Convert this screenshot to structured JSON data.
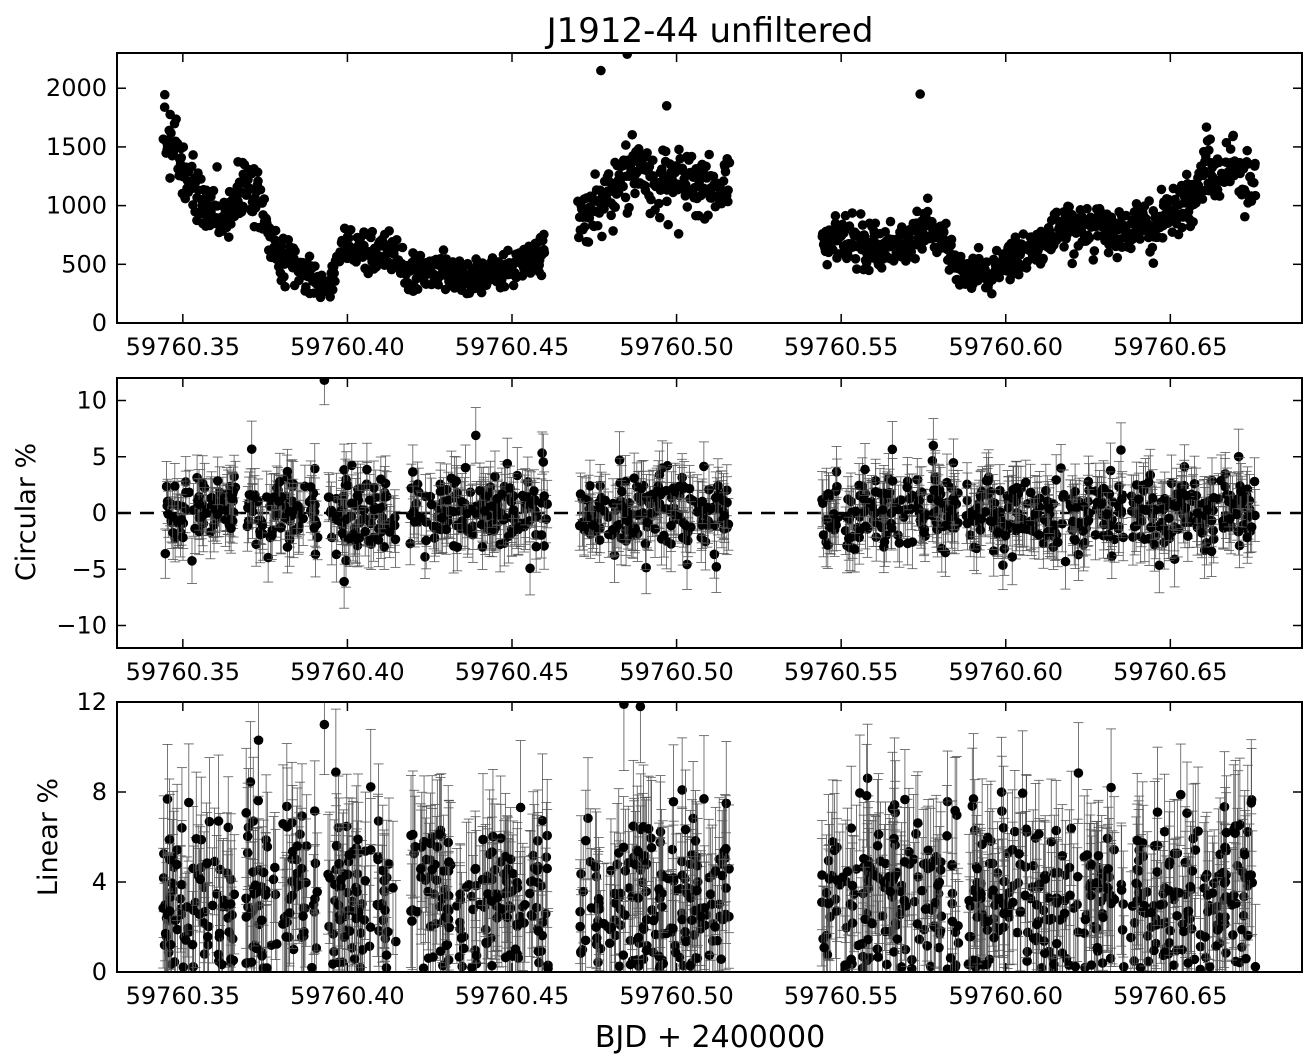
{
  "chart_data": [
    {
      "type": "scatter",
      "title": "J1912-44 unfiltered",
      "ylabel": "",
      "xlabel": "",
      "xlim": [
        59760.33,
        59760.69
      ],
      "ylim": [
        0,
        2300
      ],
      "xticks": [
        59760.35,
        59760.4,
        59760.45,
        59760.5,
        59760.55,
        59760.6,
        59760.65
      ],
      "xtick_labels": [
        "59760.35",
        "59760.40",
        "59760.45",
        "59760.50",
        "59760.55",
        "59760.60",
        "59760.65"
      ],
      "yticks": [
        0,
        500,
        1000,
        1500,
        2000
      ],
      "ytick_labels": [
        "0",
        "500",
        "1000",
        "1500",
        "2000"
      ],
      "error_bars": false,
      "segments": [
        {
          "x": [
            59760.344,
            59760.349,
            59760.353,
            59760.358,
            59760.362,
            59760.366,
            59760.369,
            59760.373,
            59760.376,
            59760.379,
            59760.383,
            59760.386,
            59760.39,
            59760.393,
            59760.398,
            59760.403,
            59760.408,
            59760.413,
            59760.418,
            59760.423,
            59760.429,
            59760.435,
            59760.441,
            59760.447,
            59760.452,
            59760.456,
            59760.46
          ],
          "y": [
            1620,
            1420,
            1100,
            980,
            860,
            1100,
            1250,
            1000,
            720,
            570,
            520,
            470,
            380,
            300,
            580,
            650,
            560,
            610,
            450,
            470,
            430,
            430,
            400,
            420,
            480,
            550,
            600
          ]
        },
        {
          "x": [
            59760.47,
            59760.474,
            59760.479,
            59760.484,
            59760.488,
            59760.493,
            59760.498,
            59760.503,
            59760.508,
            59760.513,
            59760.516
          ],
          "y": [
            880,
            980,
            1040,
            1240,
            1350,
            1200,
            1230,
            1150,
            1170,
            1100,
            1180
          ]
        },
        {
          "x": [
            59760.544,
            59760.549,
            59760.554,
            59760.559,
            59760.564,
            59760.569,
            59760.573,
            59760.577,
            59760.581,
            59760.585,
            59760.59,
            59760.595,
            59760.6,
            59760.605,
            59760.61,
            59760.616,
            59760.622,
            59760.628,
            59760.634,
            59760.64,
            59760.646,
            59760.652,
            59760.657,
            59760.661,
            59760.665,
            59760.669,
            59760.673,
            59760.676
          ],
          "y": [
            700,
            700,
            680,
            650,
            650,
            700,
            760,
            820,
            720,
            500,
            450,
            400,
            540,
            620,
            660,
            780,
            820,
            800,
            800,
            800,
            880,
            950,
            1000,
            1380,
            1180,
            1400,
            1100,
            1250
          ]
        }
      ],
      "outliers": {
        "x": [
          59760.477,
          59760.485,
          59760.574,
          59760.497
        ],
        "y": [
          2150,
          2290,
          1950,
          1850
        ]
      },
      "noise_scale": 90,
      "n_points": 1300,
      "jitter_seed": 7
    },
    {
      "type": "scatter",
      "title": "",
      "ylabel": "Circular %",
      "xlabel": "",
      "xlim": [
        59760.33,
        59760.69
      ],
      "ylim": [
        -12,
        12
      ],
      "xticks": [
        59760.35,
        59760.4,
        59760.45,
        59760.5,
        59760.55,
        59760.6,
        59760.65
      ],
      "xtick_labels": [
        "59760.35",
        "59760.40",
        "59760.45",
        "59760.50",
        "59760.55",
        "59760.60",
        "59760.65"
      ],
      "yticks": [
        -10,
        -5,
        0,
        5,
        10
      ],
      "ytick_labels": [
        "−10",
        "−5",
        "0",
        "5",
        "10"
      ],
      "error_bars": true,
      "error_size": 2.2,
      "reference_line": 0,
      "blocks": [
        [
          59760.344,
          59760.366
        ],
        [
          59760.369,
          59760.391
        ],
        [
          59760.394,
          59760.415
        ],
        [
          59760.419,
          59760.461
        ],
        [
          59760.47,
          59760.516
        ],
        [
          59760.544,
          59760.586
        ],
        [
          59760.588,
          59760.636
        ],
        [
          59760.638,
          59760.676
        ]
      ],
      "center": 0,
      "spread": 1.7,
      "outliers": {
        "x": [
          59760.393,
          59760.439,
          59760.578,
          59760.635,
          59760.399
        ],
        "y": [
          11.8,
          6.9,
          6.0,
          5.6,
          -6.1
        ]
      },
      "n_points": 1100,
      "jitter_seed": 13
    },
    {
      "type": "scatter",
      "title": "",
      "ylabel": "Linear %",
      "xlabel": "BJD + 2400000",
      "xlim": [
        59760.33,
        59760.69
      ],
      "ylim": [
        0,
        12
      ],
      "xticks": [
        59760.35,
        59760.4,
        59760.45,
        59760.5,
        59760.55,
        59760.6,
        59760.65
      ],
      "xtick_labels": [
        "59760.35",
        "59760.40",
        "59760.45",
        "59760.50",
        "59760.55",
        "59760.60",
        "59760.65"
      ],
      "yticks": [
        0,
        4,
        8,
        12
      ],
      "ytick_labels": [
        "0",
        "4",
        "8",
        "12"
      ],
      "error_bars": true,
      "error_size": 2.6,
      "blocks": [
        [
          59760.344,
          59760.366
        ],
        [
          59760.369,
          59760.391
        ],
        [
          59760.394,
          59760.415
        ],
        [
          59760.419,
          59760.461
        ],
        [
          59760.47,
          59760.516
        ],
        [
          59760.544,
          59760.586
        ],
        [
          59760.588,
          59760.636
        ],
        [
          59760.638,
          59760.676
        ]
      ],
      "center": 3.2,
      "spread": 2.0,
      "floor": 0.1,
      "outliers": {
        "x": [
          59760.484,
          59760.489,
          59760.393,
          59760.373,
          59760.632
        ],
        "y": [
          11.9,
          11.8,
          11.0,
          10.3,
          8.2
        ]
      },
      "n_points": 1100,
      "jitter_seed": 29
    }
  ]
}
